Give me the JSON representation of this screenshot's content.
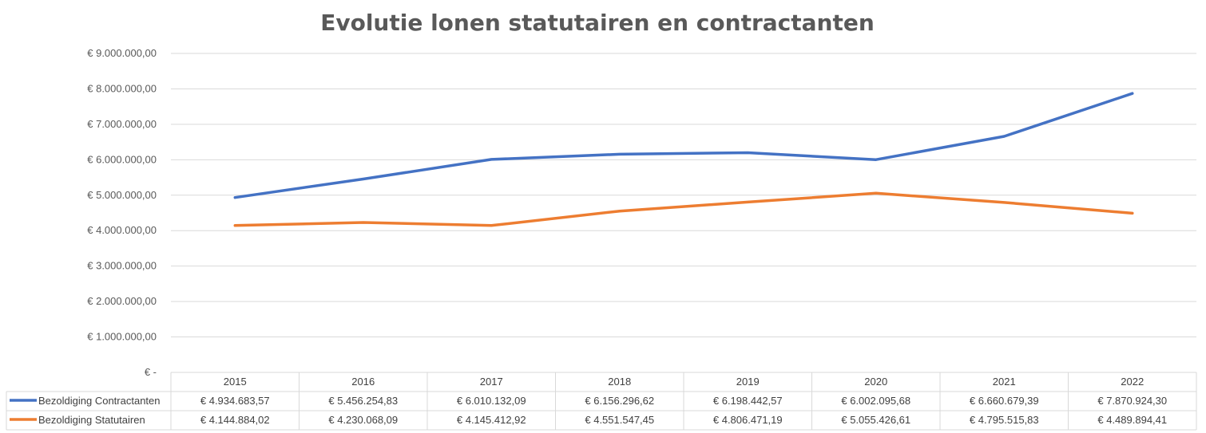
{
  "chart_data": {
    "type": "line",
    "title": "Evolutie lonen statutairen en contractanten",
    "ylim": [
      0,
      9000000
    ],
    "y_ticks": [
      {
        "value": 0,
        "label": "€ -"
      },
      {
        "value": 1000000,
        "label": "€ 1.000.000,00"
      },
      {
        "value": 2000000,
        "label": "€ 2.000.000,00"
      },
      {
        "value": 3000000,
        "label": "€ 3.000.000,00"
      },
      {
        "value": 4000000,
        "label": "€ 4.000.000,00"
      },
      {
        "value": 5000000,
        "label": "€ 5.000.000,00"
      },
      {
        "value": 6000000,
        "label": "€ 6.000.000,00"
      },
      {
        "value": 7000000,
        "label": "€ 7.000.000,00"
      },
      {
        "value": 8000000,
        "label": "€ 8.000.000,00"
      },
      {
        "value": 9000000,
        "label": "€ 9.000.000,00"
      }
    ],
    "grid": true,
    "legend": "data-table",
    "categories": [
      "2015",
      "2016",
      "2017",
      "2018",
      "2019",
      "2020",
      "2021",
      "2022"
    ],
    "series": [
      {
        "name": "Bezoldiging Contractanten",
        "color": "#4472c4",
        "values": [
          4934683.57,
          5456254.83,
          6010132.09,
          6156296.62,
          6198442.57,
          6002095.68,
          6660679.39,
          7870924.3
        ],
        "labels": [
          "€ 4.934.683,57",
          "€ 5.456.254,83",
          "€ 6.010.132,09",
          "€ 6.156.296,62",
          "€ 6.198.442,57",
          "€ 6.002.095,68",
          "€ 6.660.679,39",
          "€ 7.870.924,30"
        ]
      },
      {
        "name": "Bezoldiging Statutairen",
        "color": "#ed7d31",
        "values": [
          4144884.02,
          4230068.09,
          4145412.92,
          4551547.45,
          4806471.19,
          5055426.61,
          4795515.83,
          4489894.41
        ],
        "labels": [
          "€ 4.144.884,02",
          "€ 4.230.068,09",
          "€ 4.145.412,92",
          "€ 4.551.547,45",
          "€ 4.806.471,19",
          "€ 5.055.426,61",
          "€ 4.795.515,83",
          "€ 4.489.894,41"
        ]
      }
    ]
  }
}
